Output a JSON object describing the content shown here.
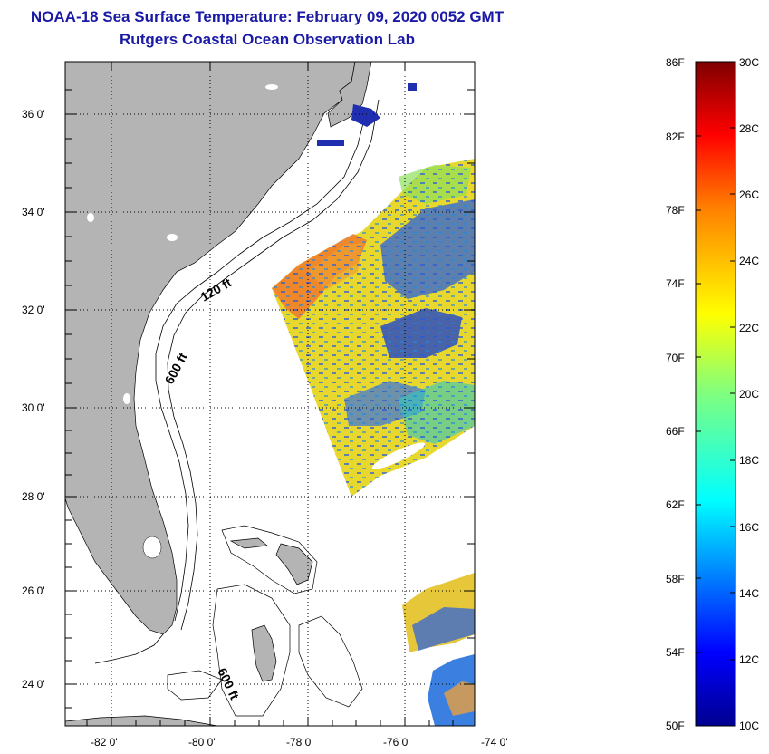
{
  "header": {
    "title": "NOAA-18 Sea Surface Temperature:  February 09, 2020 0052 GMT",
    "subtitle": "Rutgers Coastal Ocean Observation Lab"
  },
  "map": {
    "lat_labels": [
      "36 0'",
      "34 0'",
      "32 0'",
      "30 0'",
      "28 0'",
      "26 0'",
      "24 0'"
    ],
    "lon_labels": [
      "-82 0'",
      "-80 0'",
      "-78 0'",
      "-76 0'",
      "-74 0'"
    ],
    "contour_labels": [
      "120 ft",
      "600 ft",
      "600 ft"
    ],
    "land_color": "#b4b4b4"
  },
  "colorbar": {
    "f_labels": [
      "86F",
      "82F",
      "78F",
      "74F",
      "70F",
      "66F",
      "62F",
      "58F",
      "54F",
      "50F"
    ],
    "c_labels": [
      "30C",
      "28C",
      "26C",
      "24C",
      "22C",
      "20C",
      "18C",
      "16C",
      "14C",
      "12C",
      "10C"
    ]
  }
}
